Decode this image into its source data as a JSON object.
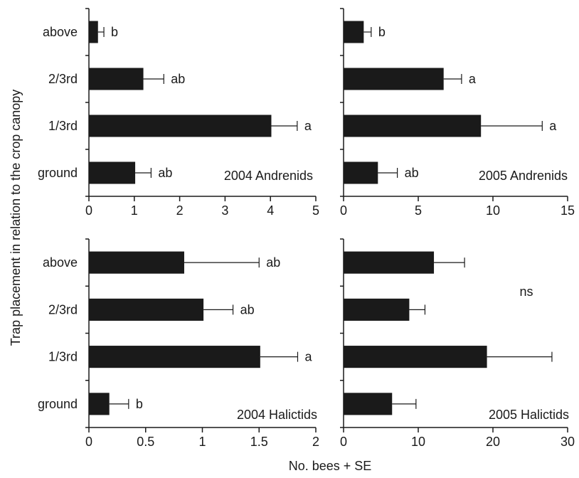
{
  "figure": {
    "ylabel": "Trap placement in relation to the crop canopy",
    "xlabel": "No. bees + SE"
  },
  "chart_data": [
    {
      "type": "bar",
      "orientation": "horizontal",
      "title": "2004 Andrenids",
      "categories": [
        "above",
        "2/3rd",
        "1/3rd",
        "ground"
      ],
      "values": [
        0.2,
        1.2,
        4.02,
        1.02
      ],
      "errors": [
        0.13,
        0.45,
        0.57,
        0.35
      ],
      "letters": [
        "b",
        "ab",
        "a",
        "ab"
      ],
      "xlim": [
        0,
        5
      ],
      "xticks": [
        "0",
        "1",
        "2",
        "3",
        "4",
        "5"
      ]
    },
    {
      "type": "bar",
      "orientation": "horizontal",
      "title": "2005 Andrenids",
      "categories": [
        "above",
        "2/3rd",
        "1/3rd",
        "ground"
      ],
      "values": [
        1.35,
        6.7,
        9.2,
        2.3
      ],
      "errors": [
        0.5,
        1.2,
        4.1,
        1.3
      ],
      "letters": [
        "b",
        "a",
        "a",
        "ab"
      ],
      "xlim": [
        0,
        15
      ],
      "xticks": [
        "0",
        "5",
        "10",
        "15"
      ]
    },
    {
      "type": "bar",
      "orientation": "horizontal",
      "title": "2004 Halictids",
      "categories": [
        "above",
        "2/3rd",
        "1/3rd",
        "ground"
      ],
      "values": [
        0.84,
        1.01,
        1.51,
        0.18
      ],
      "errors": [
        0.66,
        0.26,
        0.33,
        0.17
      ],
      "letters": [
        "ab",
        "ab",
        "a",
        "b"
      ],
      "xlim": [
        0,
        2
      ],
      "xticks": [
        "0",
        "0.5",
        "1",
        "1.5",
        "2"
      ]
    },
    {
      "type": "bar",
      "orientation": "horizontal",
      "title": "2005 Halictids",
      "categories": [
        "above",
        "2/3rd",
        "1/3rd",
        "ground"
      ],
      "values": [
        12.1,
        8.8,
        19.2,
        6.5
      ],
      "errors": [
        4.1,
        2.1,
        8.7,
        3.2
      ],
      "letters": [
        "",
        "",
        "",
        ""
      ],
      "annotation": "ns",
      "xlim": [
        0,
        30
      ],
      "xticks": [
        "0",
        "10",
        "20",
        "30"
      ]
    }
  ],
  "colors": {
    "bar": "#1a1a1a",
    "axis": "#1a1a1a",
    "background": "#ffffff"
  }
}
